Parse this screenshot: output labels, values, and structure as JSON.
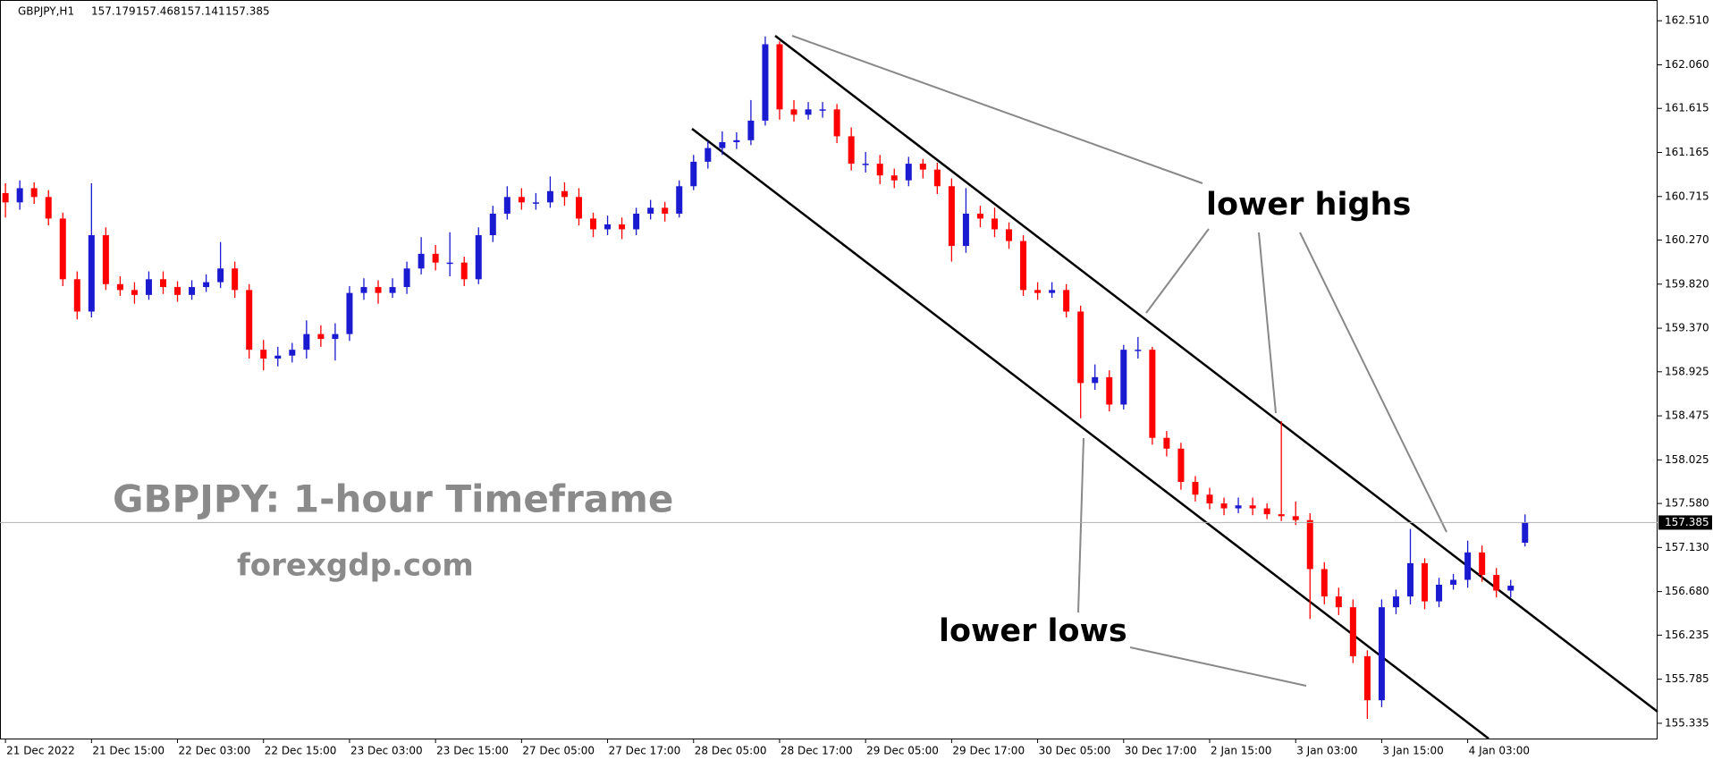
{
  "chart_data": {
    "type": "candlestick",
    "symbol": "GBPJPY,H1",
    "title": "GBPJPY: 1-hour Timeframe",
    "subtitle": "forexgdp.com",
    "annotations": [
      "lower highs",
      "lower lows"
    ],
    "up_color": "#1a1ad0",
    "down_color": "#ff0000",
    "current_price": 157.385,
    "ylim": [
      155.179,
      162.722
    ],
    "yticks": [
      {
        "value": 162.51,
        "label": "162.510"
      },
      {
        "value": 162.06,
        "label": "162.060"
      },
      161.615,
      161.165,
      160.715,
      {
        "value": 160.27,
        "label": "160.270"
      },
      {
        "value": 159.82,
        "label": "159.820"
      },
      {
        "value": 159.37,
        "label": "159.370"
      },
      158.925,
      158.475,
      158.025,
      {
        "value": 157.58,
        "label": "157.580"
      },
      {
        "value": 157.13,
        "label": "157.130"
      },
      {
        "value": 156.68,
        "label": "156.680"
      },
      156.235,
      155.785,
      155.335
    ],
    "categories": [
      "21 Dec 2022",
      null,
      null,
      null,
      null,
      null,
      "21 Dec 15:00",
      null,
      null,
      null,
      null,
      null,
      "22 Dec 03:00",
      null,
      null,
      null,
      null,
      null,
      "22 Dec 15:00",
      null,
      null,
      null,
      null,
      null,
      "23 Dec 03:00",
      null,
      null,
      null,
      null,
      null,
      "23 Dec 15:00",
      null,
      null,
      null,
      null,
      null,
      "27 Dec 05:00",
      null,
      null,
      null,
      null,
      null,
      "27 Dec 17:00",
      null,
      null,
      null,
      null,
      null,
      "28 Dec 05:00",
      null,
      null,
      null,
      null,
      null,
      "28 Dec 17:00",
      null,
      null,
      null,
      null,
      null,
      "29 Dec 05:00",
      null,
      null,
      null,
      null,
      null,
      "29 Dec 17:00",
      null,
      null,
      null,
      null,
      null,
      "30 Dec 05:00",
      null,
      null,
      null,
      null,
      null,
      "30 Dec 17:00",
      null,
      null,
      null,
      null,
      null,
      "2 Jan 15:00",
      null,
      null,
      null,
      null,
      null,
      "3 Jan 03:00",
      null,
      null,
      null,
      null,
      null,
      "3 Jan 15:00",
      null,
      null,
      null,
      null,
      null,
      "4 Jan 03:00",
      null,
      null,
      null,
      null
    ],
    "open": [
      160.75,
      160.655,
      160.8,
      160.71,
      160.49,
      159.87,
      159.54,
      160.32,
      159.82,
      159.76,
      159.71,
      159.87,
      159.79,
      159.71,
      159.79,
      159.84,
      159.98,
      159.76,
      159.15,
      159.06,
      159.09,
      159.15,
      159.31,
      159.26,
      159.31,
      159.73,
      159.79,
      159.73,
      159.79,
      159.98,
      160.13,
      160.04,
      160.04,
      159.87,
      160.32,
      160.54,
      160.71,
      160.655,
      160.655,
      160.77,
      160.71,
      160.49,
      160.38,
      160.43,
      160.38,
      160.54,
      160.6,
      160.54,
      160.82,
      161.07,
      161.21,
      161.27,
      161.29,
      161.49,
      162.27,
      161.605,
      161.55,
      161.605,
      161.605,
      161.33,
      161.05,
      161.05,
      160.93,
      160.88,
      161.05,
      160.99,
      160.82,
      160.21,
      160.54,
      160.49,
      160.38,
      160.26,
      159.76,
      159.73,
      159.76,
      159.54,
      158.81,
      158.87,
      158.59,
      159.15,
      159.15,
      158.25,
      158.14,
      157.8,
      157.67,
      157.58,
      157.53,
      157.56,
      157.53,
      157.47,
      157.45,
      157.41,
      156.91,
      156.63,
      156.52,
      156.02,
      155.57,
      156.52,
      156.63,
      156.97,
      156.58,
      156.75,
      156.8,
      157.08,
      156.85,
      156.69,
      157.179
    ],
    "high": [
      160.85,
      160.88,
      160.86,
      160.78,
      160.55,
      159.95,
      160.85,
      160.4,
      159.9,
      159.84,
      159.95,
      159.95,
      159.85,
      159.86,
      159.92,
      160.25,
      160.05,
      159.82,
      159.25,
      159.18,
      159.22,
      159.45,
      159.4,
      159.42,
      159.8,
      159.88,
      159.86,
      159.88,
      160.05,
      160.3,
      160.22,
      160.35,
      160.1,
      160.4,
      160.62,
      160.82,
      160.8,
      160.75,
      160.92,
      160.86,
      160.8,
      160.55,
      160.52,
      160.5,
      160.6,
      160.68,
      160.66,
      160.88,
      161.14,
      161.28,
      161.38,
      161.37,
      161.7,
      162.35,
      162.3,
      161.7,
      161.68,
      161.68,
      161.66,
      161.42,
      161.17,
      161.14,
      161.0,
      161.12,
      161.1,
      161.06,
      160.9,
      160.8,
      160.62,
      160.6,
      160.45,
      160.32,
      159.84,
      159.84,
      159.82,
      159.6,
      159.0,
      158.94,
      159.2,
      159.28,
      159.18,
      158.32,
      158.2,
      157.86,
      157.74,
      157.64,
      157.64,
      157.64,
      157.58,
      158.42,
      157.6,
      157.48,
      156.98,
      156.72,
      156.6,
      156.08,
      156.6,
      156.7,
      157.32,
      157.02,
      156.82,
      156.86,
      157.2,
      157.15,
      156.92,
      156.8,
      157.468
    ],
    "low": [
      160.5,
      160.58,
      160.64,
      160.42,
      159.8,
      159.46,
      159.48,
      159.76,
      159.7,
      159.62,
      159.66,
      159.72,
      159.64,
      159.66,
      159.74,
      159.78,
      159.68,
      159.06,
      158.94,
      158.98,
      159.02,
      159.06,
      159.18,
      159.04,
      159.24,
      159.66,
      159.62,
      159.68,
      159.72,
      159.92,
      159.96,
      159.9,
      159.8,
      159.82,
      160.25,
      160.48,
      160.58,
      160.58,
      160.6,
      160.62,
      160.42,
      160.3,
      160.32,
      160.28,
      160.32,
      160.48,
      160.46,
      160.5,
      160.78,
      161.0,
      161.14,
      161.2,
      161.24,
      161.44,
      161.5,
      161.48,
      161.5,
      161.52,
      161.26,
      160.98,
      160.96,
      160.84,
      160.8,
      160.82,
      160.9,
      160.74,
      160.05,
      160.14,
      160.4,
      160.3,
      160.18,
      159.7,
      159.66,
      159.68,
      159.48,
      158.45,
      158.74,
      158.52,
      158.54,
      159.06,
      158.18,
      158.06,
      157.72,
      157.6,
      157.52,
      157.46,
      157.48,
      157.46,
      157.42,
      157.4,
      157.36,
      156.4,
      156.55,
      156.44,
      155.95,
      155.38,
      155.5,
      156.45,
      156.55,
      156.5,
      156.52,
      156.7,
      156.72,
      156.78,
      156.62,
      156.62,
      157.141
    ],
    "close": [
      160.655,
      160.8,
      160.71,
      160.49,
      159.87,
      159.54,
      160.32,
      159.82,
      159.76,
      159.71,
      159.87,
      159.79,
      159.71,
      159.79,
      159.84,
      159.98,
      159.76,
      159.15,
      159.06,
      159.09,
      159.15,
      159.31,
      159.26,
      159.31,
      159.73,
      159.79,
      159.73,
      159.79,
      159.98,
      160.13,
      160.04,
      160.04,
      159.87,
      160.32,
      160.54,
      160.71,
      160.655,
      160.655,
      160.77,
      160.71,
      160.49,
      160.38,
      160.43,
      160.38,
      160.54,
      160.6,
      160.54,
      160.82,
      161.07,
      161.21,
      161.27,
      161.29,
      161.49,
      162.27,
      161.605,
      161.55,
      161.605,
      161.605,
      161.33,
      161.05,
      161.05,
      160.93,
      160.88,
      161.05,
      160.99,
      160.82,
      160.21,
      160.54,
      160.49,
      160.38,
      160.26,
      159.76,
      159.73,
      159.76,
      159.54,
      158.81,
      158.87,
      158.59,
      159.15,
      159.15,
      158.25,
      158.14,
      157.8,
      157.67,
      157.58,
      157.53,
      157.56,
      157.53,
      157.47,
      157.45,
      157.41,
      156.91,
      156.63,
      156.52,
      156.02,
      155.57,
      156.52,
      156.63,
      156.97,
      156.58,
      156.75,
      156.8,
      157.08,
      156.85,
      156.69,
      156.74,
      157.385
    ]
  }
}
